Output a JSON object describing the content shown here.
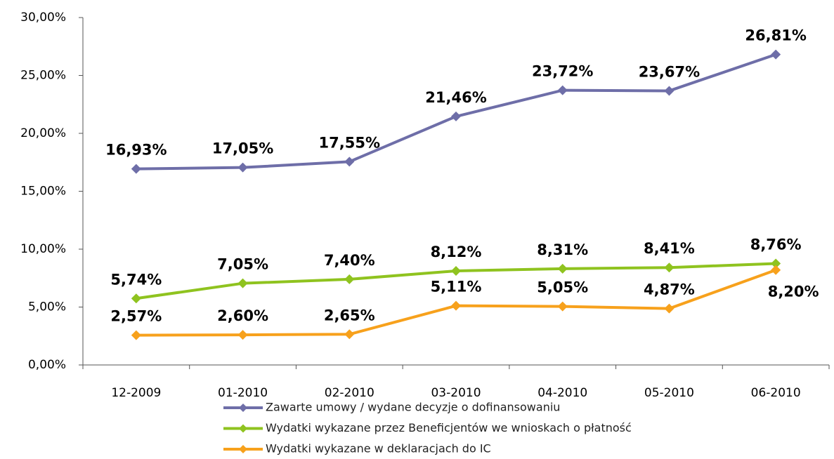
{
  "chart_data": {
    "type": "line",
    "categories": [
      "12-2009",
      "01-2010",
      "02-2010",
      "03-2010",
      "04-2010",
      "05-2010",
      "06-2010"
    ],
    "series": [
      {
        "name": "Zawarte umowy / wydane decyzje o dofinansowaniu",
        "color": "#6e6ea8",
        "values": [
          16.93,
          17.05,
          17.55,
          21.46,
          23.72,
          23.67,
          26.81
        ],
        "value_labels": [
          "16,93%",
          "17,05%",
          "17,55%",
          "21,46%",
          "23,72%",
          "23,67%",
          "26,81%"
        ]
      },
      {
        "name": "Wydatki wykazane przez Beneficjentów we wnioskach o płatność",
        "color": "#8fc31f",
        "values": [
          5.74,
          7.05,
          7.4,
          8.12,
          8.31,
          8.41,
          8.76
        ],
        "value_labels": [
          "5,74%",
          "7,05%",
          "7,40%",
          "8,12%",
          "8,31%",
          "8,41%",
          "8,76%"
        ]
      },
      {
        "name": "Wydatki wykazane w deklaracjach do IC",
        "color": "#f7a11c",
        "values": [
          2.57,
          2.6,
          2.65,
          5.11,
          5.05,
          4.87,
          8.2
        ],
        "value_labels": [
          "2,57%",
          "2,60%",
          "2,65%",
          "5,11%",
          "5,05%",
          "4,87%",
          "8,20%"
        ]
      }
    ],
    "ylim": [
      0,
      30
    ],
    "yticks": [
      {
        "value": 0,
        "label": "0,00%"
      },
      {
        "value": 5,
        "label": "5,00%"
      },
      {
        "value": 10,
        "label": "10,00%"
      },
      {
        "value": 15,
        "label": "15,00%"
      },
      {
        "value": 20,
        "label": "20,00%"
      },
      {
        "value": 25,
        "label": "25,00%"
      },
      {
        "value": 30,
        "label": "30,00%"
      }
    ],
    "grid": false
  }
}
